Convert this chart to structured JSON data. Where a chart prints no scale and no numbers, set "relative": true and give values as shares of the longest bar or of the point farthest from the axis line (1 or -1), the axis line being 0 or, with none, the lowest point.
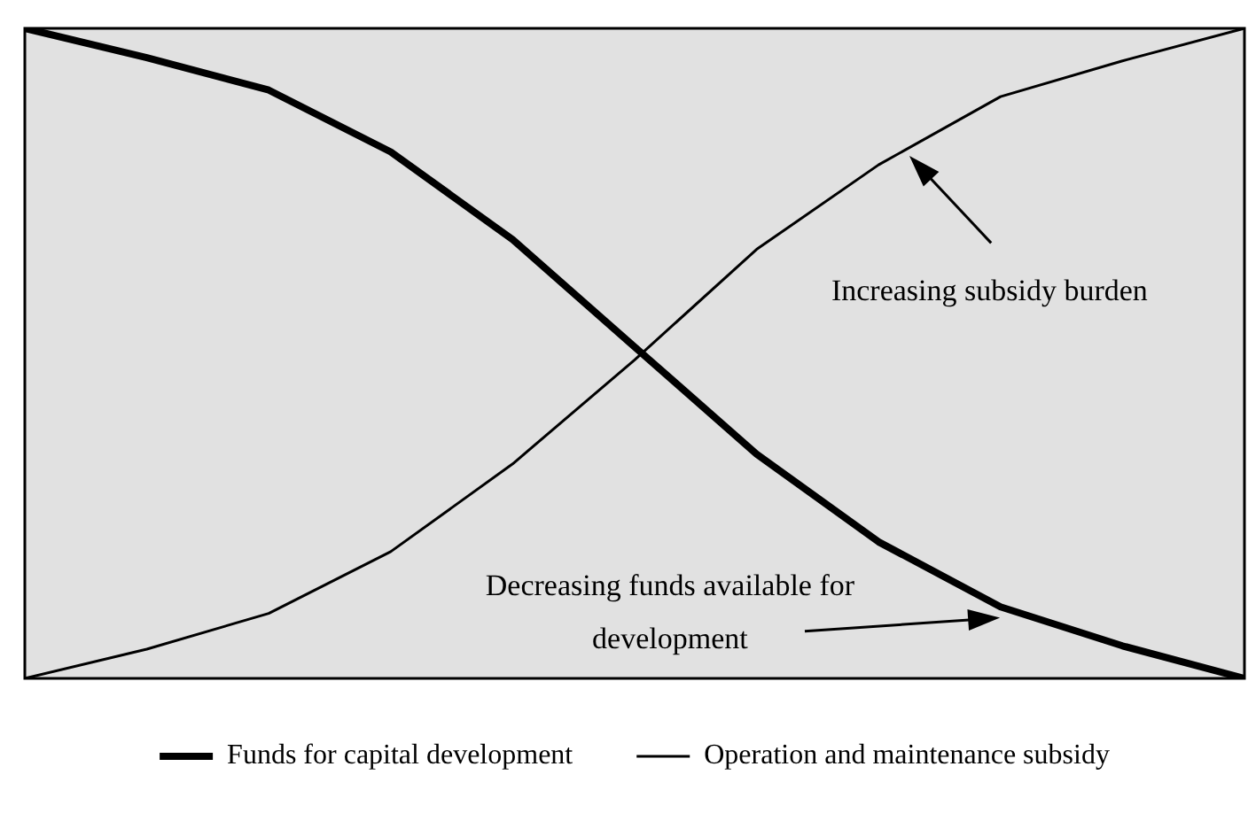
{
  "chart_data": {
    "type": "line",
    "relative": true,
    "categories": [
      null,
      null,
      null,
      null,
      null,
      null,
      null,
      null,
      null,
      null,
      null
    ],
    "series": [
      {
        "name": "Funds for capital development",
        "color": "#000000",
        "values": [
          1,
          0.955,
          0.905,
          0.81,
          0.675,
          0.51,
          0.345,
          0.21,
          0.11,
          0.05,
          0
        ]
      },
      {
        "name": "Operation and maintenance subsidy",
        "color": "#000000",
        "values": [
          0,
          0.045,
          0.1,
          0.195,
          0.33,
          0.49,
          0.66,
          0.79,
          0.895,
          0.95,
          1
        ]
      }
    ],
    "annotations": [
      "Increasing subsidy burden",
      "Decreasing funds available for development"
    ],
    "legend": "bottom",
    "marker": "none",
    "line_style": "solid"
  }
}
